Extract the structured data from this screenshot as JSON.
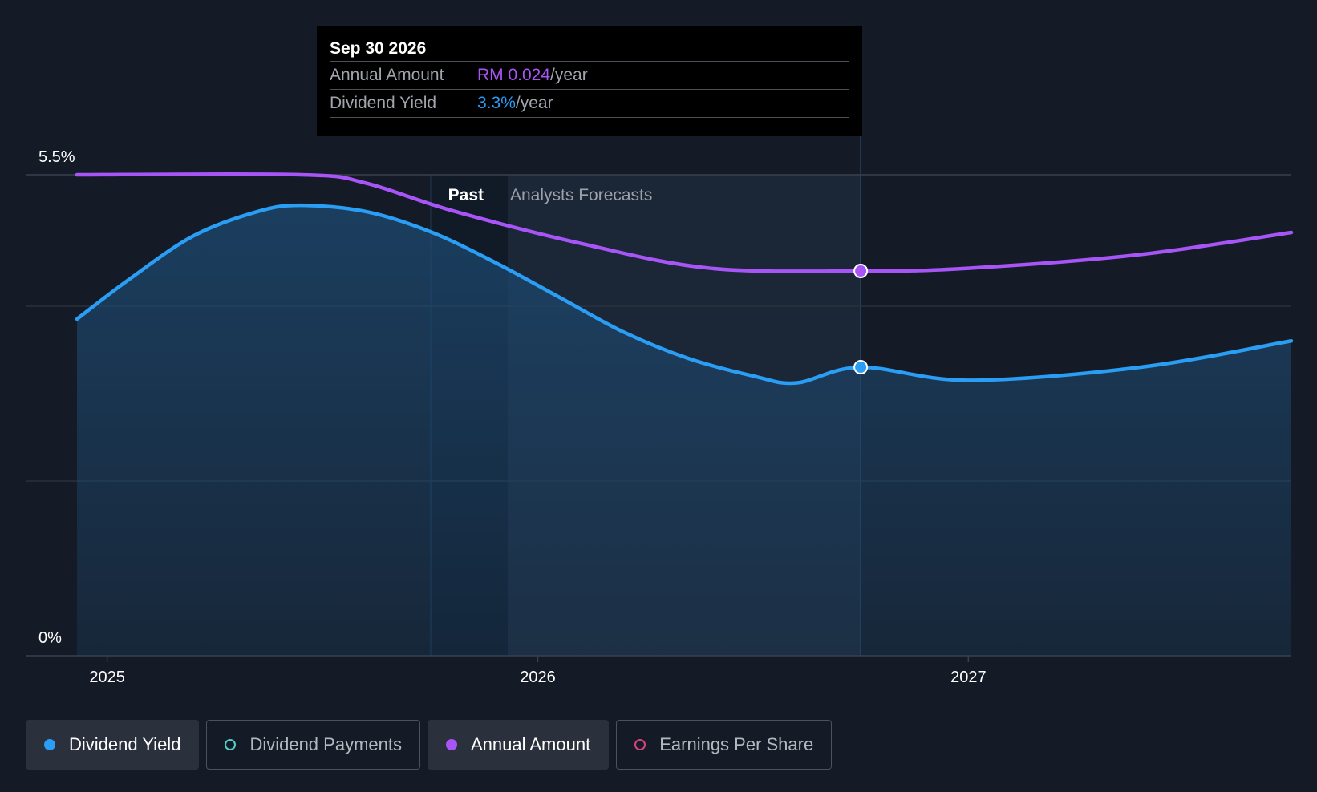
{
  "chart_data": {
    "type": "line",
    "title": "",
    "y_axis": {
      "range": [
        0,
        5.5
      ],
      "tick_labels": [
        "5.5%",
        "0%"
      ]
    },
    "x_axis": {
      "range": [
        2024.93,
        2027.75
      ],
      "tick_labels": [
        "2025",
        "2026",
        "2027"
      ],
      "ticks": [
        2025,
        2026,
        2027
      ]
    },
    "regions": {
      "past_label": "Past",
      "forecast_label": "Analysts Forecasts",
      "divider_x": 2025.93
    },
    "series": [
      {
        "name": "Dividend Yield",
        "color": "#2a9df4",
        "unit": "%",
        "points": [
          {
            "x": 2024.93,
            "y": 3.85
          },
          {
            "x": 2025.05,
            "y": 4.3
          },
          {
            "x": 2025.2,
            "y": 4.8
          },
          {
            "x": 2025.35,
            "y": 5.08
          },
          {
            "x": 2025.45,
            "y": 5.15
          },
          {
            "x": 2025.6,
            "y": 5.08
          },
          {
            "x": 2025.75,
            "y": 4.85
          },
          {
            "x": 2025.9,
            "y": 4.5
          },
          {
            "x": 2026.05,
            "y": 4.1
          },
          {
            "x": 2026.2,
            "y": 3.7
          },
          {
            "x": 2026.35,
            "y": 3.4
          },
          {
            "x": 2026.5,
            "y": 3.2
          },
          {
            "x": 2026.6,
            "y": 3.12
          },
          {
            "x": 2026.75,
            "y": 3.3
          },
          {
            "x": 2027.0,
            "y": 3.15
          },
          {
            "x": 2027.4,
            "y": 3.3
          },
          {
            "x": 2027.75,
            "y": 3.6
          }
        ]
      },
      {
        "name": "Annual Amount",
        "color": "#a855f7",
        "unit": "RM",
        "points": [
          {
            "x": 2024.93,
            "y": 0.0275
          },
          {
            "x": 2025.45,
            "y": 0.0275
          },
          {
            "x": 2025.6,
            "y": 0.0272
          },
          {
            "x": 2025.8,
            "y": 0.0262
          },
          {
            "x": 2026.1,
            "y": 0.025
          },
          {
            "x": 2026.4,
            "y": 0.0241
          },
          {
            "x": 2026.75,
            "y": 0.024
          },
          {
            "x": 2027.0,
            "y": 0.0241
          },
          {
            "x": 2027.4,
            "y": 0.0246
          },
          {
            "x": 2027.75,
            "y": 0.0254
          }
        ]
      }
    ],
    "highlight": {
      "x": 2026.75,
      "date": "Sep 30 2026"
    }
  },
  "tooltip": {
    "date": "Sep 30 2026",
    "rows": [
      {
        "label": "Annual Amount",
        "value": "RM 0.024",
        "suffix": "/year"
      },
      {
        "label": "Dividend Yield",
        "value": "3.3%",
        "suffix": "/year"
      }
    ]
  },
  "legend": [
    {
      "label": "Dividend Yield",
      "color": "#2a9df4",
      "active": true
    },
    {
      "label": "Dividend Payments",
      "color": "#4fd1c5",
      "active": false
    },
    {
      "label": "Annual Amount",
      "color": "#a855f7",
      "active": true
    },
    {
      "label": "Earnings Per Share",
      "color": "#d6457a",
      "active": false
    }
  ]
}
